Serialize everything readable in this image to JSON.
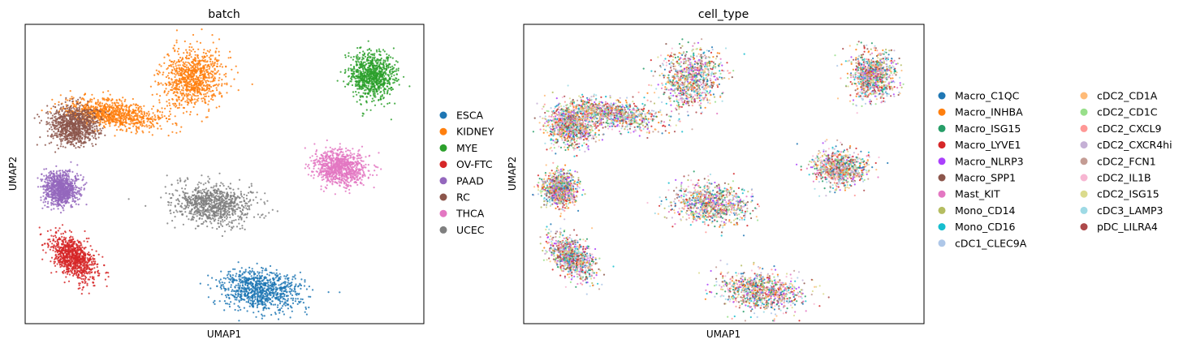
{
  "chart_data": [
    {
      "type": "scatter",
      "title": "batch",
      "xlabel": "UMAP1",
      "ylabel": "UMAP2",
      "grid": false,
      "ticks": false,
      "legend_position": "right",
      "legend": [
        {
          "label": "ESCA",
          "color": "#1f77b4"
        },
        {
          "label": "KIDNEY",
          "color": "#ff7f0e"
        },
        {
          "label": "MYE",
          "color": "#2ca02c"
        },
        {
          "label": "OV-FTC",
          "color": "#d62728"
        },
        {
          "label": "PAAD",
          "color": "#9467bd"
        },
        {
          "label": "RC",
          "color": "#8c564b"
        },
        {
          "label": "THCA",
          "color": "#e377c2"
        },
        {
          "label": "UCEC",
          "color": "#7f7f7f"
        }
      ],
      "clusters": [
        {
          "category": "KIDNEY",
          "center": [
            0.42,
            0.82
          ],
          "spread": [
            0.07,
            0.09
          ],
          "angle": -15
        },
        {
          "category": "KIDNEY",
          "center": [
            0.22,
            0.7
          ],
          "spread": [
            0.11,
            0.04
          ],
          "angle": -12
        },
        {
          "category": "RC",
          "center": [
            0.12,
            0.66
          ],
          "spread": [
            0.055,
            0.06
          ],
          "angle": 0
        },
        {
          "category": "MYE",
          "center": [
            0.87,
            0.83
          ],
          "spread": [
            0.05,
            0.07
          ],
          "angle": 0
        },
        {
          "category": "THCA",
          "center": [
            0.79,
            0.52
          ],
          "spread": [
            0.06,
            0.05
          ],
          "angle": -20
        },
        {
          "category": "PAAD",
          "center": [
            0.09,
            0.45
          ],
          "spread": [
            0.038,
            0.05
          ],
          "angle": 0
        },
        {
          "category": "UCEC",
          "center": [
            0.47,
            0.4
          ],
          "spread": [
            0.09,
            0.06
          ],
          "angle": -8
        },
        {
          "category": "OV-FTC",
          "center": [
            0.12,
            0.22
          ],
          "spread": [
            0.04,
            0.075
          ],
          "angle": 30
        },
        {
          "category": "ESCA",
          "center": [
            0.59,
            0.11
          ],
          "spread": [
            0.09,
            0.06
          ],
          "angle": -10
        }
      ]
    },
    {
      "type": "scatter",
      "title": "cell_type",
      "xlabel": "UMAP1",
      "ylabel": "UMAP2",
      "grid": false,
      "ticks": false,
      "legend_position": "right",
      "legend": [
        {
          "label": "Macro_C1QC",
          "color": "#1f77b4"
        },
        {
          "label": "Macro_INHBA",
          "color": "#ff7f0e"
        },
        {
          "label": "Macro_ISG15",
          "color": "#279e68"
        },
        {
          "label": "Macro_LYVE1",
          "color": "#d62728"
        },
        {
          "label": "Macro_NLRP3",
          "color": "#aa40fc"
        },
        {
          "label": "Macro_SPP1",
          "color": "#8c564b"
        },
        {
          "label": "Mast_KIT",
          "color": "#e377c2"
        },
        {
          "label": "Mono_CD14",
          "color": "#b5bd61"
        },
        {
          "label": "Mono_CD16",
          "color": "#17becf"
        },
        {
          "label": "cDC1_CLEC9A",
          "color": "#aec7e8"
        },
        {
          "label": "cDC2_CD1A",
          "color": "#ffbb78"
        },
        {
          "label": "cDC2_CD1C",
          "color": "#98df8a"
        },
        {
          "label": "cDC2_CXCL9",
          "color": "#ff9896"
        },
        {
          "label": "cDC2_CXCR4hi",
          "color": "#c5b0d5"
        },
        {
          "label": "cDC2_FCN1",
          "color": "#c49c94"
        },
        {
          "label": "cDC2_IL1B",
          "color": "#f7b6d2"
        },
        {
          "label": "cDC2_ISG15",
          "color": "#dbdb8d"
        },
        {
          "label": "cDC3_LAMP3",
          "color": "#9edae5"
        },
        {
          "label": "pDC_LILRA4",
          "color": "#ad494a"
        }
      ],
      "clusters": [
        {
          "center": [
            0.42,
            0.82
          ],
          "spread": [
            0.07,
            0.09
          ],
          "angle": -15
        },
        {
          "center": [
            0.22,
            0.7
          ],
          "spread": [
            0.11,
            0.04
          ],
          "angle": -12
        },
        {
          "center": [
            0.12,
            0.66
          ],
          "spread": [
            0.055,
            0.06
          ],
          "angle": 0
        },
        {
          "center": [
            0.87,
            0.83
          ],
          "spread": [
            0.05,
            0.07
          ],
          "angle": 0
        },
        {
          "center": [
            0.79,
            0.52
          ],
          "spread": [
            0.06,
            0.05
          ],
          "angle": -20
        },
        {
          "center": [
            0.09,
            0.45
          ],
          "spread": [
            0.038,
            0.05
          ],
          "angle": 0
        },
        {
          "center": [
            0.47,
            0.4
          ],
          "spread": [
            0.09,
            0.06
          ],
          "angle": -8
        },
        {
          "center": [
            0.12,
            0.22
          ],
          "spread": [
            0.04,
            0.075
          ],
          "angle": 30
        },
        {
          "center": [
            0.59,
            0.11
          ],
          "spread": [
            0.09,
            0.06
          ],
          "angle": -10
        }
      ]
    }
  ]
}
